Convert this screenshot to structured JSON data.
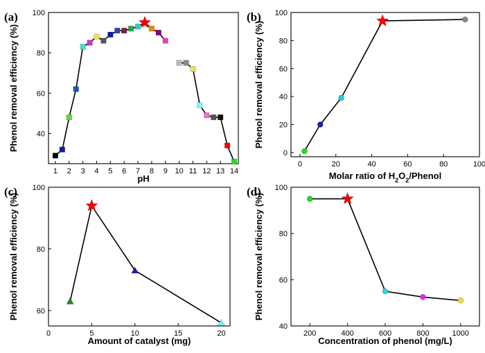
{
  "chart_data": [
    {
      "id": "a",
      "type": "line",
      "panel_label": "(a)",
      "xlabel": "pH",
      "ylabel": "Phenol removal efficiency (%)",
      "xlim": [
        0.5,
        14.3
      ],
      "ylim": [
        25,
        100
      ],
      "xticks": [
        1,
        2,
        3,
        4,
        5,
        6,
        7,
        8,
        9,
        10,
        11,
        12,
        13,
        14
      ],
      "yticks": [
        40,
        60,
        80,
        100
      ],
      "x": [
        1.0,
        1.5,
        2.0,
        2.5,
        3.0,
        3.5,
        4.0,
        4.5,
        5.0,
        5.5,
        6.0,
        6.5,
        7.0,
        7.5,
        8.0,
        8.5,
        9.0,
        10.0,
        10.5,
        11.0,
        11.5,
        12.0,
        12.5,
        13.0,
        13.5,
        14.0
      ],
      "y": [
        29,
        32,
        48,
        62,
        83,
        85,
        88,
        86,
        89,
        91,
        91,
        92,
        93,
        95,
        92,
        90,
        86,
        75,
        75,
        72,
        54,
        49,
        48,
        48,
        34,
        26
      ],
      "markers": [
        "square",
        "square",
        "square",
        "square",
        "square",
        "square",
        "square",
        "square",
        "square",
        "square",
        "square",
        "square",
        "square",
        "star",
        "square",
        "square",
        "square",
        "square",
        "square",
        "square",
        "square",
        "square",
        "square",
        "square",
        "square",
        "square"
      ],
      "colors": [
        "#000000",
        "#0b1f9e",
        "#66dd33",
        "#1a52c4",
        "#44ddcc",
        "#cc33cc",
        "#e8e066",
        "#555555",
        "#0b1f9e",
        "#3344aa",
        "#7a1f4a",
        "#22aa44",
        "#33cccc",
        "#ff0000",
        "#ee8800",
        "#880088",
        "#dd44bb",
        "#bbbbbb",
        "#888888",
        "#e8e066",
        "#77ffff",
        "#ff66cc",
        "#555555",
        "#111111",
        "#ff0000",
        "#22dd22"
      ],
      "segments": [
        [
          0,
          16
        ],
        [
          17,
          25
        ]
      ]
    },
    {
      "id": "b",
      "type": "line",
      "panel_label": "(b)",
      "xlabel": "Molar ratio of H2O2/Phenol",
      "ylabel": "Phenol removal efficiency (%)",
      "xlim": [
        -5,
        100
      ],
      "ylim": [
        -3,
        100
      ],
      "xticks": [
        0,
        20,
        40,
        60,
        80,
        100
      ],
      "yticks": [
        0,
        20,
        40,
        60,
        80,
        100
      ],
      "x": [
        2.5,
        11.3,
        23,
        46,
        92
      ],
      "y": [
        1,
        20,
        39,
        94,
        95
      ],
      "markers": [
        "circle",
        "circle",
        "circle",
        "star",
        "circle"
      ],
      "colors": [
        "#22dd22",
        "#1a22b0",
        "#22ccdd",
        "#ff0000",
        "#888888"
      ]
    },
    {
      "id": "c",
      "type": "line",
      "panel_label": "(c)",
      "xlabel": "Amount of catalyst (mg)",
      "ylabel": "Phenol removal efficiency (%)",
      "xlim": [
        0,
        21
      ],
      "ylim": [
        55,
        100
      ],
      "xticks": [
        0,
        5,
        10,
        15,
        20
      ],
      "yticks": [
        60,
        80,
        100
      ],
      "x": [
        2.5,
        5,
        10,
        20
      ],
      "y": [
        63,
        94,
        73,
        56
      ],
      "markers": [
        "triangle",
        "star",
        "triangle",
        "triangle"
      ],
      "colors": [
        "#1a8a1a",
        "#ff0000",
        "#1a22b0",
        "#66ffff"
      ]
    },
    {
      "id": "d",
      "type": "line",
      "panel_label": "(d)",
      "xlabel": "Concentration of phenol (mg/L)",
      "ylabel": "Phenol removal efficiency (%)",
      "xlim": [
        100,
        1100
      ],
      "ylim": [
        40,
        100
      ],
      "xticks": [
        200,
        400,
        600,
        800,
        1000
      ],
      "yticks": [
        40,
        60,
        80,
        100
      ],
      "x": [
        200,
        400,
        600,
        800,
        1000
      ],
      "y": [
        95,
        95,
        55,
        52.5,
        51
      ],
      "markers": [
        "circle",
        "star",
        "circle",
        "circle",
        "circle"
      ],
      "colors": [
        "#22dd22",
        "#ff0000",
        "#22ddee",
        "#ee22ee",
        "#eedd44"
      ]
    }
  ]
}
